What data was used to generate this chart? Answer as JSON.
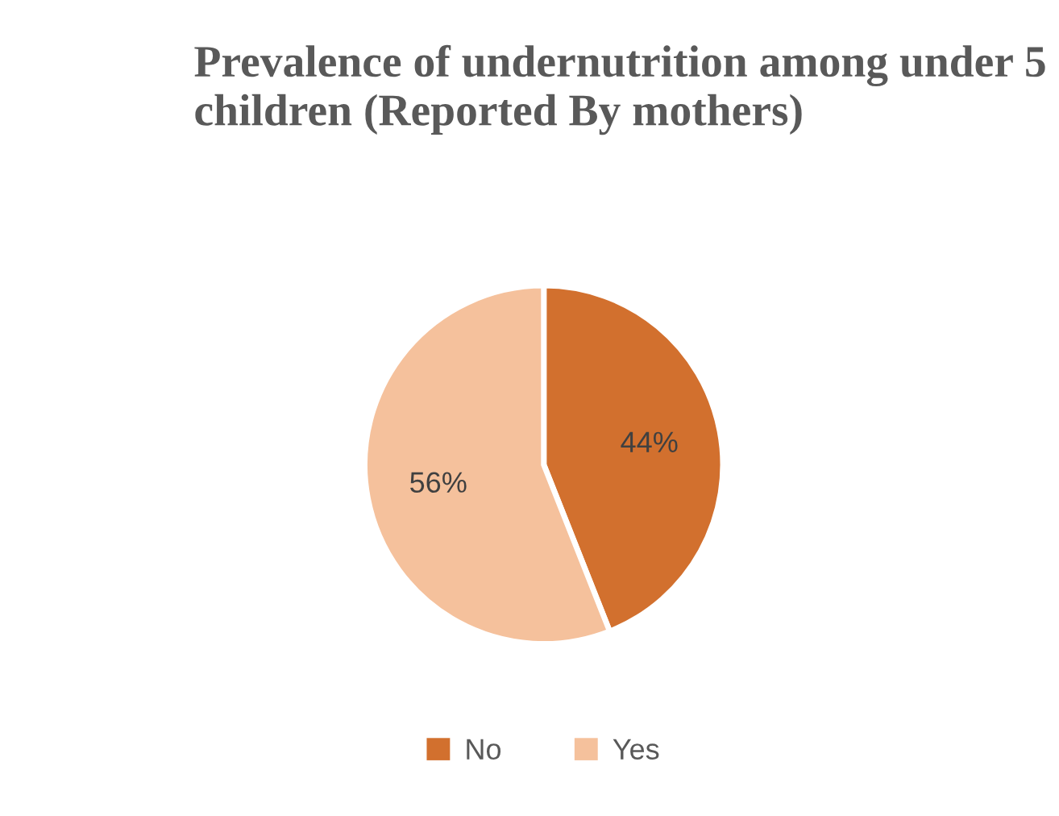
{
  "chart_data": {
    "type": "pie",
    "title": "Prevalence of undernutrition among under 5 children (Reported By mothers)",
    "categories": [
      "No",
      "Yes"
    ],
    "values": [
      44,
      56
    ],
    "colors": [
      "#d2702e",
      "#f5c19c"
    ],
    "value_labels": [
      "44%",
      "56%"
    ],
    "legend": "bottom"
  }
}
